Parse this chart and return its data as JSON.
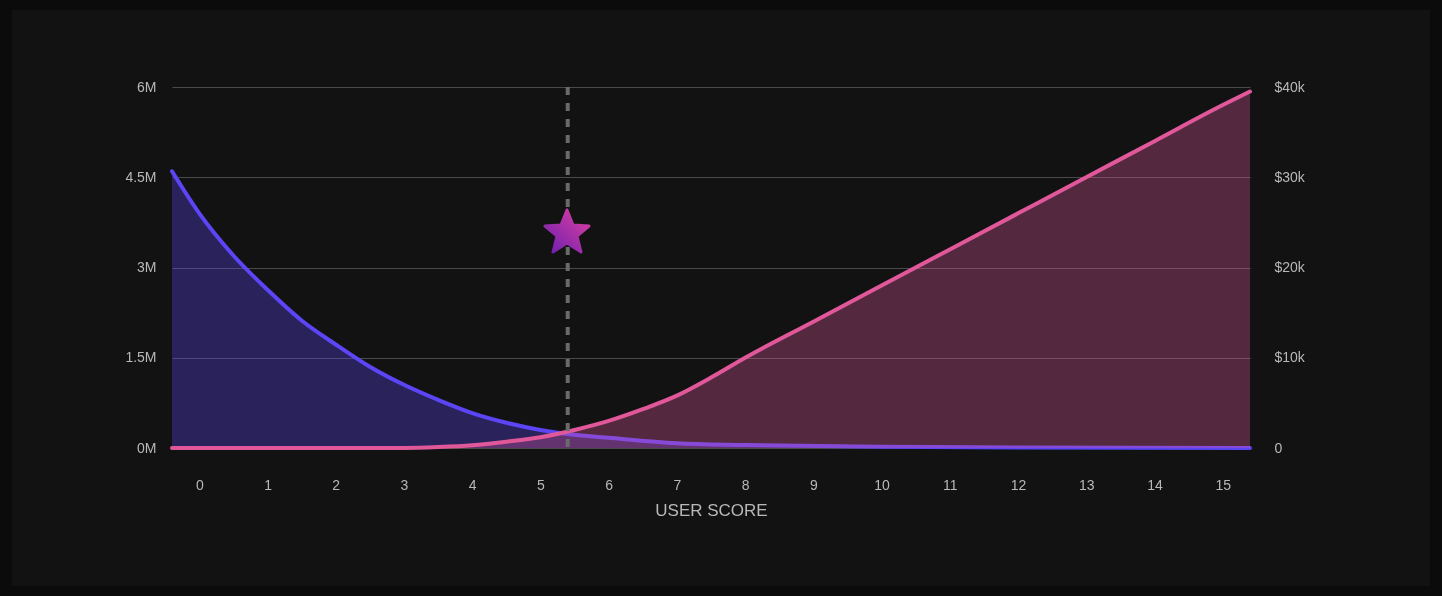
{
  "chart_data": {
    "type": "area",
    "xlabel": "USER SCORE",
    "xlim": [
      -0.4,
      15.4
    ],
    "xticks": [
      0,
      1,
      2,
      3,
      4,
      5,
      6,
      7,
      8,
      9,
      10,
      11,
      12,
      13,
      14,
      15
    ],
    "ylim": [
      0,
      6000000
    ],
    "yticks": [
      {
        "value": 0,
        "label": "0M"
      },
      {
        "value": 1500000,
        "label": "1.5M"
      },
      {
        "value": 3000000,
        "label": "3M"
      },
      {
        "value": 4500000,
        "label": "4.5M"
      },
      {
        "value": 6000000,
        "label": "6M"
      }
    ],
    "y2lim": [
      0,
      40000
    ],
    "y2ticks": [
      {
        "value": 0,
        "label": "0"
      },
      {
        "value": 10000,
        "label": "$10k"
      },
      {
        "value": 20000,
        "label": "$20k"
      },
      {
        "value": 30000,
        "label": "$30k"
      },
      {
        "value": 40000,
        "label": "$40k"
      }
    ],
    "grid": "y",
    "series": [
      {
        "color": "#5b45f5",
        "x": [
          -0.4,
          0,
          0.5,
          1,
          1.5,
          2,
          2.5,
          3,
          3.5,
          4,
          4.5,
          5,
          5.5,
          6,
          7,
          8,
          10,
          12,
          15.4
        ],
        "values": [
          4600000,
          3900000,
          3200000,
          2630000,
          2120000,
          1720000,
          1350000,
          1050000,
          800000,
          580000,
          420000,
          300000,
          220000,
          170000,
          80000,
          50000,
          20000,
          10000,
          0
        ]
      },
      {
        "color": "#e0589a",
        "axis": "y2",
        "x": [
          -0.4,
          3,
          3.5,
          4,
          4.5,
          5,
          5.5,
          6,
          6.5,
          7,
          7.5,
          8,
          9,
          10,
          11,
          12,
          13,
          14,
          15,
          15.4
        ],
        "values": [
          0,
          0,
          100,
          300,
          700,
          1200,
          2000,
          3000,
          4300,
          5800,
          7800,
          10000,
          14000,
          18000,
          22000,
          26000,
          30000,
          34000,
          38000,
          39500
        ]
      }
    ],
    "ref_lines": [
      {
        "axis": "x",
        "value": 5.4,
        "color": "#6a6a6a",
        "line_style": "dashed"
      }
    ]
  }
}
